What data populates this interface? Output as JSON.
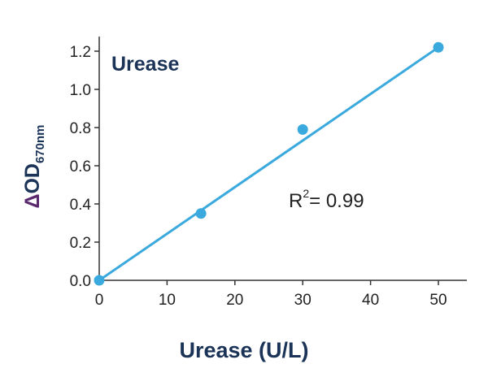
{
  "chart_data": {
    "type": "scatter",
    "title": "Urease",
    "xlabel": "Urease (U/L)",
    "ylabel": {
      "prefix": "Δ",
      "main": "OD",
      "subscript": "670nm"
    },
    "annotation": {
      "base": "R",
      "sup": "2",
      "rest": "= 0.99"
    },
    "xlim": [
      0,
      54
    ],
    "ylim": [
      0,
      1.25
    ],
    "xticks": [
      0,
      10,
      20,
      30,
      40,
      50
    ],
    "yticks": [
      0.0,
      0.2,
      0.4,
      0.6,
      0.8,
      1.0,
      1.2
    ],
    "ytick_labels": [
      "0.0",
      "0.2",
      "0.4",
      "0.6",
      "0.8",
      "1.0",
      "1.2"
    ],
    "xtick_labels": [
      "0",
      "10",
      "20",
      "30",
      "40",
      "50"
    ],
    "points": {
      "x": [
        0,
        15,
        30,
        50
      ],
      "y": [
        0.0,
        0.35,
        0.79,
        1.22
      ]
    },
    "fit_line": {
      "x": [
        0,
        50
      ],
      "y": [
        0.0,
        1.22
      ]
    },
    "grid": false,
    "colors": {
      "point": "#3aa9de",
      "line": "#3aa9de",
      "title": "#1a3357",
      "axis": "#333333",
      "ylabel_prefix": "#5b2a6e"
    }
  }
}
